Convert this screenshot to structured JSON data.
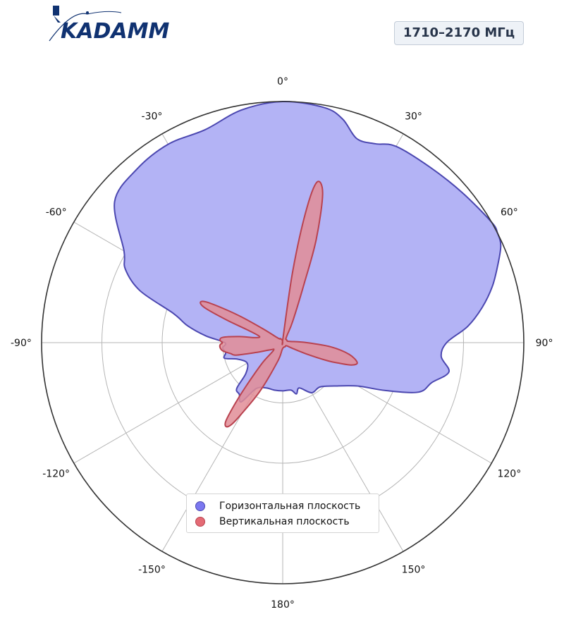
{
  "header": {
    "logo_text": "KADAMM",
    "frequency_badge": "1710–2170 МГц"
  },
  "colors": {
    "horizontal_fill": "#b3b3f5",
    "horizontal_stroke": "#4b47b0",
    "vertical_fill": "#e28d97",
    "vertical_stroke": "#b9424f",
    "logo_color": "#103271"
  },
  "chart_data": {
    "type": "polar",
    "title": "",
    "angle_unit": "deg",
    "angle_direction": "clockwise",
    "zero_location": "top",
    "radial_range": [
      0,
      1
    ],
    "radial_grid": [
      0.25,
      0.5,
      0.75,
      1.0
    ],
    "angular_ticks": [
      {
        "angle": 0,
        "label": "0°"
      },
      {
        "angle": 30,
        "label": "30°"
      },
      {
        "angle": 60,
        "label": "60°"
      },
      {
        "angle": 90,
        "label": "90°"
      },
      {
        "angle": 120,
        "label": "120°"
      },
      {
        "angle": 150,
        "label": "150°"
      },
      {
        "angle": 180,
        "label": "180°"
      },
      {
        "angle": -150,
        "label": "-150°"
      },
      {
        "angle": -120,
        "label": "-120°"
      },
      {
        "angle": -90,
        "label": "-90°"
      },
      {
        "angle": -60,
        "label": "-60°"
      },
      {
        "angle": -30,
        "label": "-30°"
      }
    ],
    "legend_position": "lower-center",
    "series": [
      {
        "name": "Горизонтальная плоскость",
        "angles": [
          0,
          10,
          15,
          20,
          25,
          30,
          40,
          50,
          60,
          63,
          66,
          70,
          75,
          80,
          85,
          90,
          95,
          100,
          105,
          110,
          115,
          120,
          130,
          140,
          150,
          160,
          165,
          170,
          180,
          190,
          200,
          210,
          215,
          220,
          225,
          230,
          240,
          250,
          255,
          260,
          265,
          270,
          275,
          280,
          285,
          290,
          295,
          300,
          310,
          320,
          330,
          340,
          350
        ],
        "values": [
          1.0,
          0.99,
          0.96,
          0.9,
          0.91,
          0.94,
          0.95,
          0.97,
          1.0,
          1.0,
          0.99,
          0.95,
          0.9,
          0.84,
          0.77,
          0.68,
          0.66,
          0.7,
          0.64,
          0.6,
          0.47,
          0.36,
          0.28,
          0.24,
          0.24,
          0.2,
          0.22,
          0.2,
          0.2,
          0.2,
          0.2,
          0.22,
          0.3,
          0.28,
          0.27,
          0.2,
          0.17,
          0.2,
          0.25,
          0.24,
          0.25,
          0.24,
          0.32,
          0.4,
          0.47,
          0.63,
          0.72,
          0.76,
          0.91,
          0.94,
          0.95,
          0.94,
          0.98
        ]
      },
      {
        "name": "Вертикальная плоскость",
        "angles": [
          0,
          4,
          8,
          10,
          12,
          15,
          18,
          20,
          25,
          30,
          40,
          50,
          60,
          70,
          80,
          90,
          95,
          100,
          105,
          108,
          110,
          112,
          115,
          120,
          130,
          150,
          170,
          185,
          195,
          205,
          210,
          212,
          214,
          216,
          218,
          220,
          225,
          230,
          240,
          250,
          255,
          258,
          262,
          265,
          268,
          270,
          272,
          275,
          278,
          280,
          285,
          290,
          292,
          294,
          296,
          298,
          300,
          302,
          305,
          310,
          320,
          330,
          350
        ],
        "values": [
          0.0,
          0.02,
          0.3,
          0.55,
          0.68,
          0.64,
          0.45,
          0.26,
          0.1,
          0.04,
          0.02,
          0.02,
          0.02,
          0.02,
          0.03,
          0.1,
          0.2,
          0.28,
          0.32,
          0.3,
          0.25,
          0.2,
          0.12,
          0.05,
          0.02,
          0.02,
          0.02,
          0.03,
          0.08,
          0.22,
          0.34,
          0.4,
          0.42,
          0.4,
          0.32,
          0.24,
          0.12,
          0.05,
          0.06,
          0.12,
          0.2,
          0.22,
          0.25,
          0.26,
          0.26,
          0.25,
          0.26,
          0.25,
          0.18,
          0.12,
          0.1,
          0.16,
          0.25,
          0.35,
          0.38,
          0.36,
          0.28,
          0.2,
          0.1,
          0.04,
          0.02,
          0.02,
          0.01
        ]
      }
    ]
  }
}
